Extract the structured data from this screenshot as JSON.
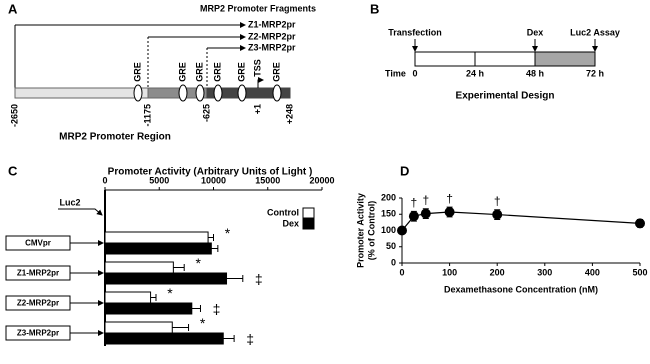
{
  "panel_labels": [
    "A",
    "B",
    "C",
    "D"
  ],
  "promoter_diagram": {
    "title": "MRP2 Promoter Fragments",
    "fragments": [
      "Z1-MRP2pr",
      "Z2-MRP2pr",
      "Z3-MRP2pr"
    ],
    "element_label": "GRE",
    "tss_label": "TSS",
    "positions": [
      "-2650",
      "-1175",
      "-625",
      "+1",
      "+248"
    ],
    "caption": "MRP2 Promoter Region"
  },
  "timeline_diagram": {
    "events": [
      "Transfection",
      "Dex",
      "Luc2 Assay"
    ],
    "time_label": "Time",
    "times": [
      "0",
      "24 h",
      "48 h",
      "72 h"
    ],
    "caption": "Experimental Design"
  },
  "chart_data": [
    {
      "type": "hbar",
      "title": "Promoter Activity (Arbitrary Units of Light )",
      "reference_label": "Luc2",
      "categories": [
        "CMVpr",
        "Z1-MRP2pr",
        "Z2-MRP2pr",
        "Z3-MRP2pr"
      ],
      "series": [
        {
          "name": "Control",
          "color": "#ffffff",
          "values": [
            9500,
            6300,
            4200,
            6200
          ],
          "errors": [
            500,
            1000,
            500,
            1500
          ]
        },
        {
          "name": "Dex",
          "color": "#000000",
          "values": [
            9800,
            11200,
            8000,
            10900
          ],
          "errors": [
            600,
            1500,
            800,
            1000
          ]
        }
      ],
      "xlim": [
        0,
        20000
      ],
      "xticks": [
        0,
        5000,
        10000,
        15000,
        20000
      ],
      "annotations": [
        {
          "category": "CMVpr",
          "series": "Control",
          "text": "*"
        },
        {
          "category": "Z1-MRP2pr",
          "series": "Control",
          "text": "*"
        },
        {
          "category": "Z1-MRP2pr",
          "series": "Dex",
          "text": "‡"
        },
        {
          "category": "Z2-MRP2pr",
          "series": "Control",
          "text": "*"
        },
        {
          "category": "Z2-MRP2pr",
          "series": "Dex",
          "text": "‡"
        },
        {
          "category": "Z3-MRP2pr",
          "series": "Control",
          "text": "*"
        },
        {
          "category": "Z3-MRP2pr",
          "series": "Dex",
          "text": "‡"
        }
      ]
    },
    {
      "type": "line",
      "xlabel": "Dexamethasone Concentration (nM)",
      "ylabel": [
        "Promoter Activity",
        "(% of Control)"
      ],
      "x": [
        0,
        25,
        50,
        100,
        200,
        500
      ],
      "values": [
        100,
        144,
        152,
        157,
        149,
        122
      ],
      "errors": [
        6,
        15,
        15,
        15,
        15,
        12
      ],
      "color": "#000000",
      "xlim": [
        0,
        500
      ],
      "xticks": [
        0,
        100,
        200,
        300,
        400,
        500
      ],
      "ylim": [
        0,
        200
      ],
      "yticks": [
        0,
        50,
        100,
        150,
        200
      ],
      "annotations": [
        {
          "x": 25,
          "text": "†"
        },
        {
          "x": 50,
          "text": "†"
        },
        {
          "x": 100,
          "text": "†"
        },
        {
          "x": 200,
          "text": "†"
        }
      ]
    }
  ]
}
